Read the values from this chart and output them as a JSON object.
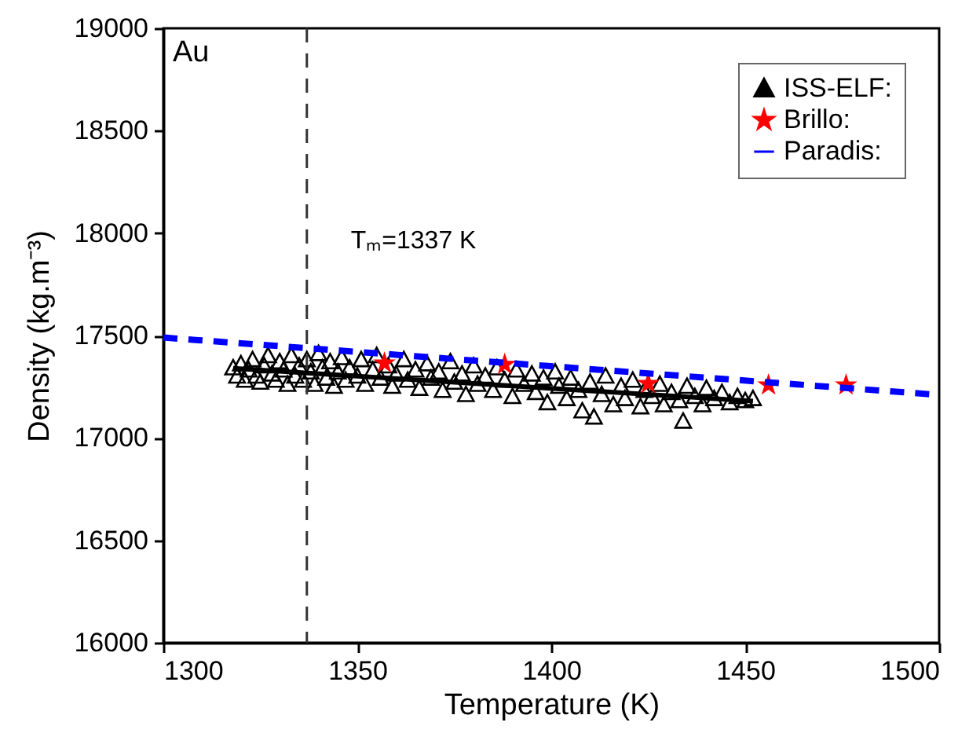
{
  "chart_data": {
    "type": "scatter",
    "xlabel": "Temperature (K)",
    "ylabel": "Density (kg.m⁻³)",
    "xlim": [
      1300,
      1500
    ],
    "xticks": [
      1300,
      1350,
      1400,
      1450,
      1500
    ],
    "ylim": [
      16000,
      19000
    ],
    "yticks": [
      16000,
      16500,
      17000,
      17500,
      18000,
      18500,
      19000
    ],
    "grid": false,
    "legend": "top right",
    "annotations": [
      "Au"
    ],
    "ref_lines": [
      {
        "axis": "x",
        "value": 1337,
        "label": "Tₘ=1337 K",
        "color": "#333333",
        "line_style": "dashed"
      }
    ],
    "series": [
      {
        "name": "ISS-ELF:",
        "marker": "triangle",
        "color": "#000000",
        "x": [
          1318,
          1319,
          1320,
          1321,
          1322,
          1323,
          1324,
          1325,
          1326,
          1327,
          1328,
          1329,
          1330,
          1331,
          1332,
          1333,
          1334,
          1335,
          1336,
          1337,
          1338,
          1339,
          1340,
          1341,
          1342,
          1343,
          1344,
          1345,
          1346,
          1347,
          1348,
          1350,
          1351,
          1352,
          1354,
          1355,
          1356,
          1358,
          1359,
          1360,
          1362,
          1363,
          1365,
          1366,
          1368,
          1369,
          1371,
          1372,
          1374,
          1375,
          1377,
          1378,
          1380,
          1381,
          1383,
          1385,
          1386,
          1388,
          1390,
          1391,
          1393,
          1395,
          1396,
          1398,
          1399,
          1401,
          1402,
          1404,
          1405,
          1407,
          1408,
          1410,
          1411,
          1413,
          1414,
          1416,
          1418,
          1419,
          1421,
          1423,
          1424,
          1426,
          1428,
          1429,
          1431,
          1433,
          1434,
          1435,
          1437,
          1439,
          1440,
          1442,
          1444,
          1446,
          1448,
          1450,
          1452
        ],
        "values": [
          17340,
          17300,
          17360,
          17280,
          17330,
          17380,
          17300,
          17270,
          17350,
          17400,
          17310,
          17280,
          17370,
          17330,
          17260,
          17400,
          17300,
          17350,
          17280,
          17380,
          17320,
          17260,
          17410,
          17340,
          17290,
          17370,
          17250,
          17320,
          17390,
          17280,
          17340,
          17300,
          17380,
          17260,
          17330,
          17400,
          17290,
          17350,
          17250,
          17310,
          17380,
          17280,
          17330,
          17240,
          17360,
          17290,
          17320,
          17230,
          17370,
          17270,
          17310,
          17210,
          17350,
          17260,
          17300,
          17230,
          17340,
          17280,
          17200,
          17330,
          17260,
          17310,
          17220,
          17290,
          17170,
          17320,
          17250,
          17190,
          17290,
          17230,
          17130,
          17270,
          17100,
          17210,
          17300,
          17160,
          17250,
          17190,
          17280,
          17150,
          17230,
          17200,
          17260,
          17160,
          17220,
          17180,
          17080,
          17250,
          17200,
          17160,
          17240,
          17190,
          17220,
          17170,
          17200,
          17180,
          17190
        ]
      },
      {
        "type": "line",
        "color": "#000000",
        "line_style": "solid",
        "x": [
          1318,
          1452
        ],
        "values": [
          17340,
          17180
        ]
      },
      {
        "name": "Brillo:",
        "marker": "star",
        "color": "#ff0000",
        "x": [
          1357,
          1388,
          1425,
          1456,
          1476
        ],
        "values": [
          17365,
          17358,
          17265,
          17258,
          17258
        ]
      },
      {
        "name": "Paradis:",
        "type": "line",
        "line_style": "dashed",
        "color": "#0000ff",
        "x": [
          1300,
          1500
        ],
        "values": [
          17490,
          17210
        ]
      }
    ]
  }
}
